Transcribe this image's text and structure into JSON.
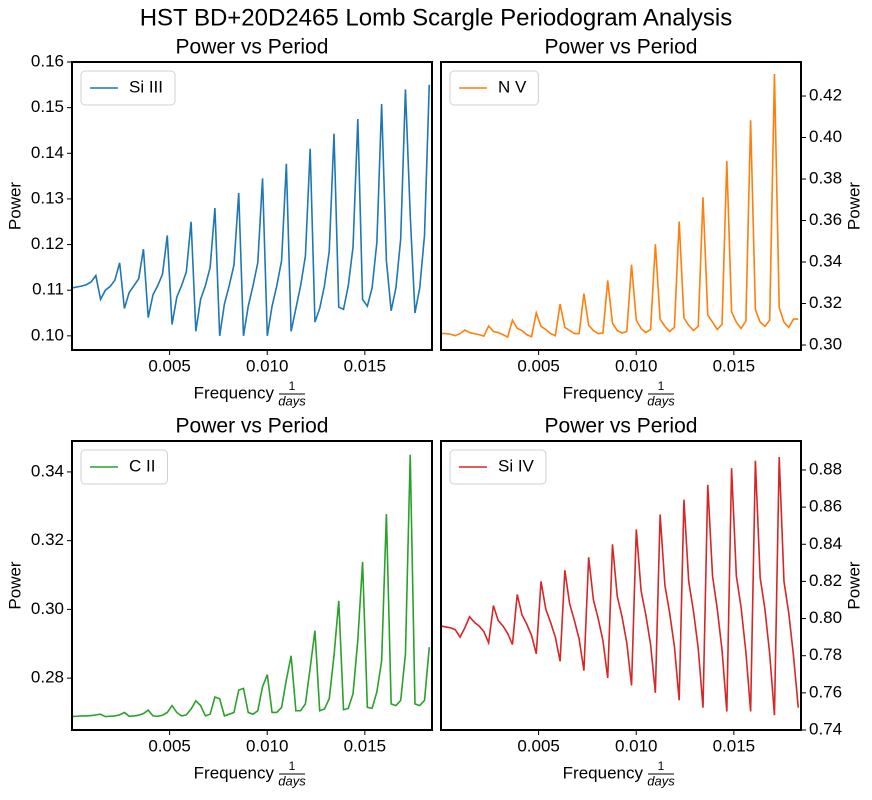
{
  "title": "HST BD+20D2465 Lomb Scargle Periodogram Analysis",
  "chart_data": [
    {
      "type": "line",
      "title": "Power vs Period",
      "xlabel": {
        "text": "Frequency",
        "numerator": "1",
        "denominator": "days"
      },
      "ylabel": "Power",
      "y_axis_side": "left",
      "legend": "upper left",
      "x": [
        0,
        0.000244,
        0.000488,
        0.000732,
        0.000976,
        0.00122,
        0.001464,
        0.001708,
        0.001952,
        0.002196,
        0.00244,
        0.002684,
        0.002928,
        0.003172,
        0.003416,
        0.00366,
        0.003904,
        0.004148,
        0.004392,
        0.004636,
        0.00488,
        0.005124,
        0.005368,
        0.005612,
        0.005856,
        0.0061,
        0.006344,
        0.006588,
        0.006832,
        0.007076,
        0.00732,
        0.007564,
        0.007808,
        0.008052,
        0.008296,
        0.00854,
        0.008784,
        0.009028,
        0.009272,
        0.009516,
        0.00976,
        0.010004,
        0.010248,
        0.010492,
        0.010736,
        0.01098,
        0.011224,
        0.011468,
        0.011712,
        0.011956,
        0.0122,
        0.012444,
        0.012688,
        0.012932,
        0.013176,
        0.01342,
        0.013664,
        0.013908,
        0.014152,
        0.014396,
        0.01464,
        0.014884,
        0.015128,
        0.015372,
        0.015616,
        0.01586,
        0.016104,
        0.016348,
        0.016592,
        0.016836,
        0.01708,
        0.017324,
        0.017568,
        0.017812,
        0.018056,
        0.0183
      ],
      "series": [
        {
          "name": "Si III",
          "color": "#1f77b4",
          "values": [
            0.1105,
            0.1107,
            0.1109,
            0.1112,
            0.1118,
            0.1132,
            0.108,
            0.11,
            0.1108,
            0.1122,
            0.116,
            0.106,
            0.1095,
            0.111,
            0.1125,
            0.119,
            0.104,
            0.109,
            0.111,
            0.1135,
            0.122,
            0.1025,
            0.1085,
            0.111,
            0.114,
            0.125,
            0.101,
            0.108,
            0.111,
            0.115,
            0.128,
            0.1,
            0.107,
            0.111,
            0.1155,
            0.1313,
            0.1,
            0.1065,
            0.111,
            0.116,
            0.1345,
            0.1,
            0.1065,
            0.111,
            0.1165,
            0.1377,
            0.101,
            0.106,
            0.111,
            0.1175,
            0.141,
            0.103,
            0.106,
            0.111,
            0.1185,
            0.1443,
            0.1063,
            0.1058,
            0.111,
            0.1195,
            0.1475,
            0.108,
            0.1065,
            0.1105,
            0.1205,
            0.1508,
            0.1165,
            0.1055,
            0.1105,
            0.1212,
            0.154,
            0.1265,
            0.105,
            0.1105,
            0.122,
            0.155
          ]
        }
      ],
      "xlim": [
        0,
        0.01844
      ],
      "ylim": [
        0.0969,
        0.16
      ],
      "xticks": [
        0.005,
        {
          "value": 0.01,
          "label": "0.010"
        },
        0.015
      ],
      "yticks": [
        {
          "value": 0.1,
          "label": "0.10"
        },
        0.11,
        0.12,
        0.13,
        0.14,
        0.15,
        0.16
      ]
    },
    {
      "type": "line",
      "title": "Power vs Period",
      "xlabel": {
        "text": "Frequency",
        "numerator": "1",
        "denominator": "days"
      },
      "ylabel": "Power",
      "y_axis_side": "right",
      "legend": "upper left",
      "x": [
        0,
        0.000244,
        0.000488,
        0.000732,
        0.000976,
        0.00122,
        0.001464,
        0.001708,
        0.001952,
        0.002196,
        0.00244,
        0.002684,
        0.002928,
        0.003172,
        0.003416,
        0.00366,
        0.003904,
        0.004148,
        0.004392,
        0.004636,
        0.00488,
        0.005124,
        0.005368,
        0.005612,
        0.005856,
        0.0061,
        0.006344,
        0.006588,
        0.006832,
        0.007076,
        0.00732,
        0.007564,
        0.007808,
        0.008052,
        0.008296,
        0.00854,
        0.008784,
        0.009028,
        0.009272,
        0.009516,
        0.00976,
        0.010004,
        0.010248,
        0.010492,
        0.010736,
        0.01098,
        0.011224,
        0.011468,
        0.011712,
        0.011956,
        0.0122,
        0.012444,
        0.012688,
        0.012932,
        0.013176,
        0.01342,
        0.013664,
        0.013908,
        0.014152,
        0.014396,
        0.01464,
        0.014884,
        0.015128,
        0.015372,
        0.015616,
        0.01586,
        0.016104,
        0.016348,
        0.016592,
        0.016836,
        0.01708,
        0.017324,
        0.017568,
        0.017812,
        0.018056,
        0.0183
      ],
      "series": [
        {
          "name": "N V",
          "color": "#ff7f0e",
          "values": [
            0.3055,
            0.3055,
            0.3052,
            0.3045,
            0.3055,
            0.3072,
            0.306,
            0.3055,
            0.305,
            0.3043,
            0.3092,
            0.3065,
            0.306,
            0.305,
            0.3038,
            0.312,
            0.308,
            0.307,
            0.305,
            0.304,
            0.3155,
            0.309,
            0.3075,
            0.3055,
            0.3045,
            0.3197,
            0.3085,
            0.307,
            0.3055,
            0.3055,
            0.3248,
            0.3095,
            0.307,
            0.3055,
            0.3058,
            0.3311,
            0.3105,
            0.307,
            0.3058,
            0.3065,
            0.3387,
            0.312,
            0.308,
            0.306,
            0.3075,
            0.3486,
            0.3125,
            0.309,
            0.3065,
            0.3085,
            0.3595,
            0.313,
            0.3095,
            0.307,
            0.309,
            0.3712,
            0.3145,
            0.311,
            0.3075,
            0.31,
            0.3886,
            0.316,
            0.311,
            0.308,
            0.3115,
            0.4083,
            0.317,
            0.311,
            0.309,
            0.312,
            0.4306,
            0.318,
            0.311,
            0.3085,
            0.3125,
            0.3125
          ]
        }
      ],
      "xlim": [
        0,
        0.01844
      ],
      "ylim": [
        0.2976,
        0.4364
      ],
      "xticks": [
        0.005,
        {
          "value": 0.01,
          "label": "0.010"
        },
        0.015
      ],
      "yticks": [
        {
          "value": 0.3,
          "label": "0.30"
        },
        0.32,
        0.34,
        0.36,
        0.38,
        {
          "value": 0.4,
          "label": "0.40"
        },
        0.42
      ]
    },
    {
      "type": "line",
      "title": "Power vs Period",
      "xlabel": {
        "text": "Frequency",
        "numerator": "1",
        "denominator": "days"
      },
      "ylabel": "Power",
      "y_axis_side": "left",
      "legend": "upper left",
      "x": [
        0,
        0.000244,
        0.000488,
        0.000732,
        0.000976,
        0.00122,
        0.001464,
        0.001708,
        0.001952,
        0.002196,
        0.00244,
        0.002684,
        0.002928,
        0.003172,
        0.003416,
        0.00366,
        0.003904,
        0.004148,
        0.004392,
        0.004636,
        0.00488,
        0.005124,
        0.005368,
        0.005612,
        0.005856,
        0.0061,
        0.006344,
        0.006588,
        0.006832,
        0.007076,
        0.00732,
        0.007564,
        0.007808,
        0.008052,
        0.008296,
        0.00854,
        0.008784,
        0.009028,
        0.009272,
        0.009516,
        0.00976,
        0.010004,
        0.010248,
        0.010492,
        0.010736,
        0.01098,
        0.011224,
        0.011468,
        0.011712,
        0.011956,
        0.0122,
        0.012444,
        0.012688,
        0.012932,
        0.013176,
        0.01342,
        0.013664,
        0.013908,
        0.014152,
        0.014396,
        0.01464,
        0.014884,
        0.015128,
        0.015372,
        0.015616,
        0.01586,
        0.016104,
        0.016348,
        0.016592,
        0.016836,
        0.01708,
        0.017324,
        0.017568,
        0.017812,
        0.018056,
        0.0183
      ],
      "series": [
        {
          "name": "C II",
          "color": "#2ca02c",
          "values": [
            0.2688,
            0.2689,
            0.269,
            0.269,
            0.2691,
            0.2693,
            0.2695,
            0.2688,
            0.2689,
            0.269,
            0.2693,
            0.27,
            0.2689,
            0.269,
            0.2692,
            0.2697,
            0.2707,
            0.269,
            0.2689,
            0.2692,
            0.27,
            0.272,
            0.27,
            0.269,
            0.2693,
            0.271,
            0.2734,
            0.272,
            0.269,
            0.2695,
            0.2745,
            0.274,
            0.269,
            0.2695,
            0.27,
            0.2765,
            0.277,
            0.27,
            0.2695,
            0.2705,
            0.2775,
            0.281,
            0.27,
            0.27,
            0.2715,
            0.2795,
            0.2865,
            0.2705,
            0.2705,
            0.2725,
            0.283,
            0.2938,
            0.2705,
            0.271,
            0.274,
            0.2865,
            0.3025,
            0.2708,
            0.2712,
            0.2755,
            0.291,
            0.3138,
            0.2715,
            0.2712,
            0.276,
            0.285,
            0.3277,
            0.2725,
            0.272,
            0.2735,
            0.287,
            0.345,
            0.2725,
            0.272,
            0.2735,
            0.289
          ]
        }
      ],
      "xlim": [
        0,
        0.01844
      ],
      "ylim": [
        0.2649,
        0.349
      ],
      "xticks": [
        0.005,
        {
          "value": 0.01,
          "label": "0.010"
        },
        0.015
      ],
      "yticks": [
        {
          "value": 0.28,
          "label": "0.28"
        },
        {
          "value": 0.3,
          "label": "0.30"
        },
        0.32,
        0.34
      ]
    },
    {
      "type": "line",
      "title": "Power vs Period",
      "xlabel": {
        "text": "Frequency",
        "numerator": "1",
        "denominator": "days"
      },
      "ylabel": "Power",
      "y_axis_side": "right",
      "legend": "upper left",
      "x": [
        0,
        0.000244,
        0.000488,
        0.000732,
        0.000976,
        0.00122,
        0.001464,
        0.001708,
        0.001952,
        0.002196,
        0.00244,
        0.002684,
        0.002928,
        0.003172,
        0.003416,
        0.00366,
        0.003904,
        0.004148,
        0.004392,
        0.004636,
        0.00488,
        0.005124,
        0.005368,
        0.005612,
        0.005856,
        0.0061,
        0.006344,
        0.006588,
        0.006832,
        0.007076,
        0.00732,
        0.007564,
        0.007808,
        0.008052,
        0.008296,
        0.00854,
        0.008784,
        0.009028,
        0.009272,
        0.009516,
        0.00976,
        0.010004,
        0.010248,
        0.010492,
        0.010736,
        0.01098,
        0.011224,
        0.011468,
        0.011712,
        0.011956,
        0.0122,
        0.012444,
        0.012688,
        0.012932,
        0.013176,
        0.01342,
        0.013664,
        0.013908,
        0.014152,
        0.014396,
        0.01464,
        0.014884,
        0.015128,
        0.015372,
        0.015616,
        0.01586,
        0.016104,
        0.016348,
        0.016592,
        0.016836,
        0.01708,
        0.017324,
        0.017568,
        0.017812,
        0.018056,
        0.0183
      ],
      "series": [
        {
          "name": "Si IV",
          "color": "#d62728",
          "values": [
            0.796,
            0.7955,
            0.795,
            0.794,
            0.79,
            0.795,
            0.801,
            0.798,
            0.796,
            0.793,
            0.787,
            0.807,
            0.799,
            0.796,
            0.792,
            0.786,
            0.813,
            0.802,
            0.797,
            0.791,
            0.781,
            0.82,
            0.805,
            0.798,
            0.79,
            0.777,
            0.826,
            0.808,
            0.799,
            0.789,
            0.772,
            0.833,
            0.81,
            0.8,
            0.788,
            0.768,
            0.84,
            0.812,
            0.801,
            0.787,
            0.764,
            0.848,
            0.815,
            0.802,
            0.786,
            0.76,
            0.856,
            0.818,
            0.803,
            0.785,
            0.756,
            0.864,
            0.82,
            0.804,
            0.784,
            0.752,
            0.872,
            0.823,
            0.805,
            0.783,
            0.75,
            0.881,
            0.823,
            0.806,
            0.782,
            0.75,
            0.885,
            0.822,
            0.805,
            0.781,
            0.748,
            0.887,
            0.82,
            0.803,
            0.78,
            0.752
          ]
        }
      ],
      "xlim": [
        0,
        0.01844
      ],
      "ylim": [
        0.74,
        0.8956
      ],
      "xticks": [
        0.005,
        {
          "value": 0.01,
          "label": "0.010"
        },
        0.015
      ],
      "yticks": [
        0.74,
        0.76,
        0.78,
        {
          "value": 0.8,
          "label": "0.80"
        },
        0.82,
        0.84,
        0.86,
        0.88
      ]
    }
  ]
}
